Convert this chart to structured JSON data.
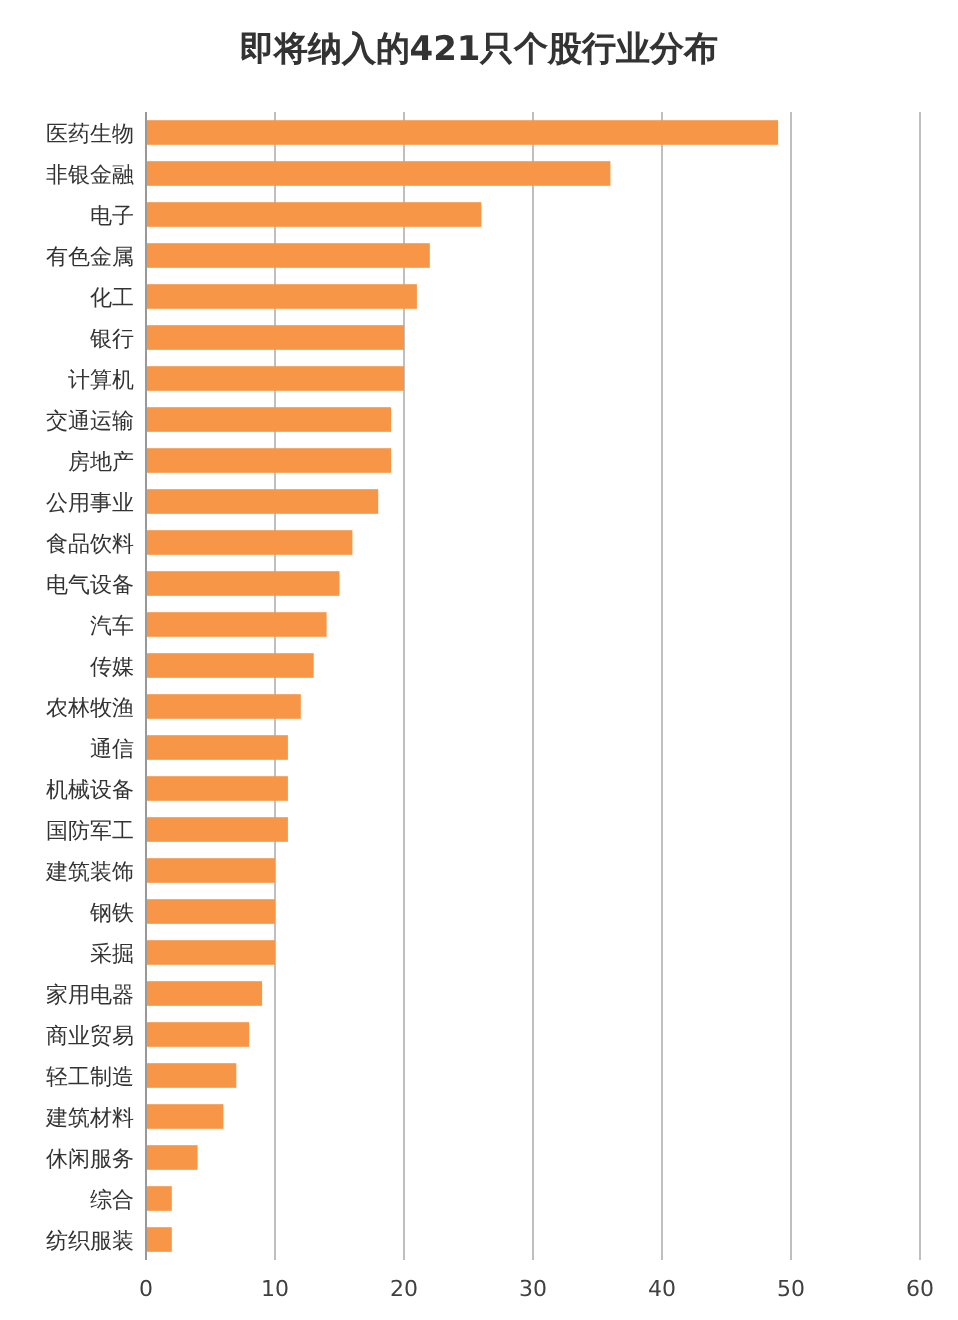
{
  "chart_data": {
    "type": "bar",
    "orientation": "horizontal",
    "title": "即将纳入的421只个股行业分布",
    "categories": [
      "医药生物",
      "非银金融",
      "电子",
      "有色金属",
      "化工",
      "银行",
      "计算机",
      "交通运输",
      "房地产",
      "公用事业",
      "食品饮料",
      "电气设备",
      "汽车",
      "传媒",
      "农林牧渔",
      "通信",
      "机械设备",
      "国防军工",
      "建筑装饰",
      "钢铁",
      "采掘",
      "家用电器",
      "商业贸易",
      "轻工制造",
      "建筑材料",
      "休闲服务",
      "综合",
      "纺织服装"
    ],
    "values": [
      49,
      36,
      26,
      22,
      21,
      20,
      20,
      19,
      19,
      18,
      16,
      15,
      14,
      13,
      12,
      11,
      11,
      11,
      10,
      10,
      10,
      9,
      8,
      7,
      6,
      4,
      2,
      2
    ],
    "color": "#f79646",
    "xlim": [
      0,
      60
    ],
    "xticks": [
      0,
      10,
      20,
      30,
      40,
      50,
      60
    ],
    "grid": "x"
  }
}
